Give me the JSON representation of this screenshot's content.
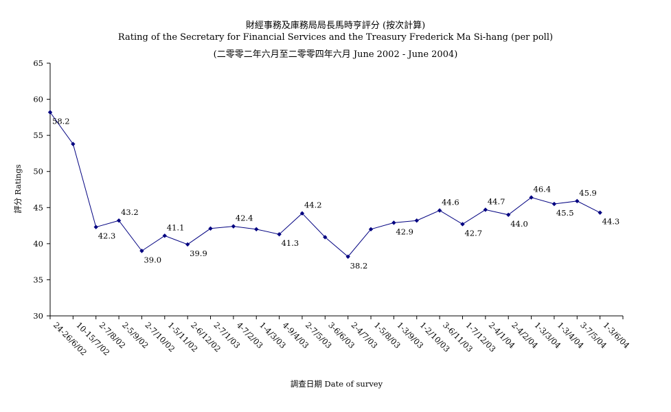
{
  "chart_data": {
    "type": "line",
    "title_zh": "財經事務及庫務局局長馬時亨評分 (按次計算)",
    "title_en": "Rating of the Secretary for Financial Services and the Treasury Frederick Ma Si-hang  (per poll)",
    "subtitle": "(二零零二年六月至二零零四年六月 June 2002 - June 2004)",
    "xlabel": "調查日期 Date of survey",
    "ylabel": "評分 Ratings",
    "ylim": [
      30,
      65
    ],
    "yticks": [
      30,
      35,
      40,
      45,
      50,
      55,
      60,
      65
    ],
    "grid": false,
    "line_color": "#000080",
    "categories": [
      "24-26/6/02",
      "10-15/7/02",
      "2-7/8/02",
      "2-5/9/02",
      "2-7/10/02",
      "1-5/11/02",
      "2-6/12/02",
      "2-7/1/03",
      "4-7/2/03",
      "1-4/3/03",
      "4-9/4/03",
      "2-7/5/03",
      "3-6/6/03",
      "2-4/7/03",
      "1-5/8/03",
      "1-3/9/03",
      "1-2/10/03",
      "3-6/11/03",
      "1-7/12/03",
      "2-4/1/04",
      "2-4/2/04",
      "1-3/3/04",
      "1-3/4/04",
      "3-7/5/04",
      "1-3/6/04"
    ],
    "values": [
      58.2,
      53.8,
      42.3,
      43.2,
      39.0,
      41.1,
      39.9,
      42.1,
      42.4,
      42.0,
      41.3,
      44.2,
      40.9,
      38.2,
      42.0,
      42.9,
      43.2,
      44.6,
      42.7,
      44.7,
      44.0,
      46.4,
      45.5,
      45.9,
      44.3
    ],
    "data_labels": [
      "58.2",
      "",
      "42.3",
      "43.2",
      "39.0",
      "41.1",
      "39.9",
      "",
      "42.4",
      "",
      "41.3",
      "44.2",
      "",
      "38.2",
      "",
      "42.9",
      "",
      "44.6",
      "42.7",
      "44.7",
      "44.0",
      "46.4",
      "45.5",
      "45.9",
      "44.3"
    ]
  }
}
